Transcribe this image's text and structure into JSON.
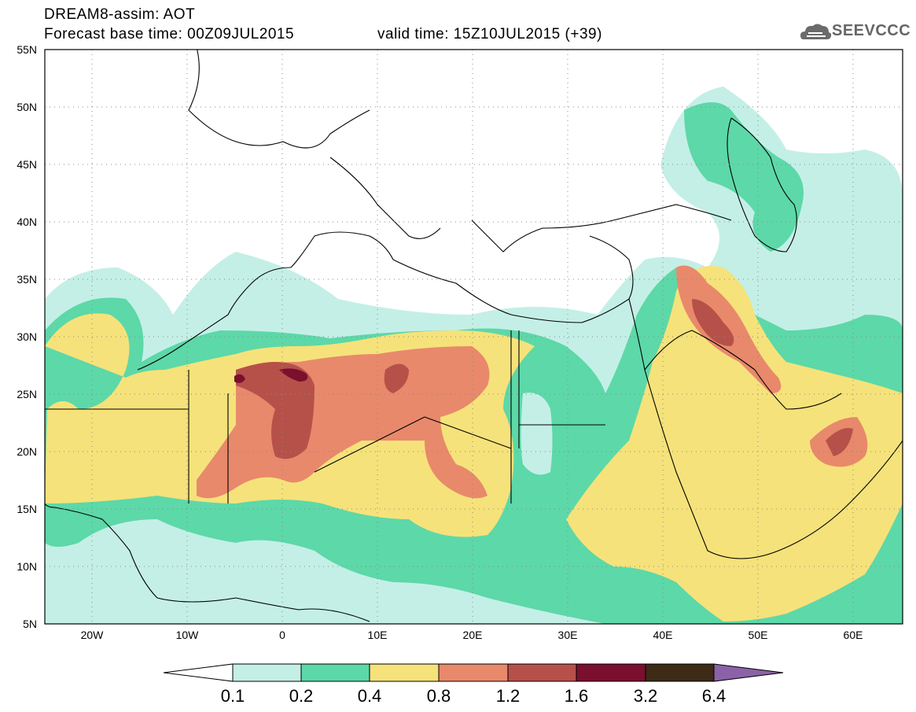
{
  "title": {
    "line1": "DREAM8-assim: AOT",
    "line2": "Forecast base time: 00Z09JUL2015",
    "line3": "valid time: 15Z10JUL2015 (+39)"
  },
  "logo": {
    "text": "SEEVCCC",
    "icon": "cloud-icon",
    "color": "#6b6b6b"
  },
  "map": {
    "lon_range": [
      -25,
      65
    ],
    "lat_range": [
      5,
      55
    ],
    "grid": "dotted",
    "lat_ticks": [
      "5N",
      "10N",
      "15N",
      "20N",
      "25N",
      "30N",
      "35N",
      "40N",
      "45N",
      "50N",
      "55N"
    ],
    "lon_ticks": [
      "20W",
      "10W",
      "0",
      "10E",
      "20E",
      "30E",
      "40E",
      "50E",
      "60E"
    ]
  },
  "colorbar": {
    "labels": [
      "0.1",
      "0.2",
      "0.4",
      "0.8",
      "1.2",
      "1.6",
      "3.2",
      "6.4"
    ],
    "colors": [
      "#ffffff",
      "#c4efe6",
      "#5dd8a8",
      "#f6e27a",
      "#e8896b",
      "#b6514a",
      "#7b0f2e",
      "#3d2a17",
      "#8b62a8"
    ]
  },
  "palette": {
    "c1": "#c4efe6",
    "c2": "#5dd8a8",
    "c3": "#f6e27a",
    "c4": "#e8896b",
    "c5": "#b6514a",
    "c6": "#7b0f2e"
  }
}
